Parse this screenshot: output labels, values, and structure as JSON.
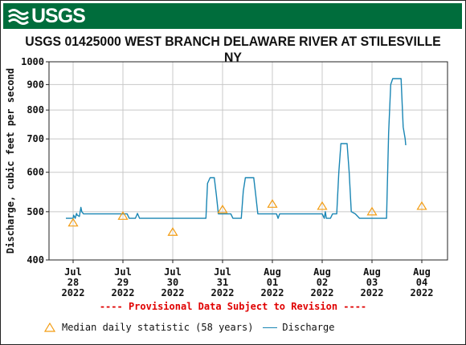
{
  "banner": {
    "logo_text": "USGS"
  },
  "chart_data": {
    "type": "line",
    "title": "USGS 01425000 WEST BRANCH DELAWARE RIVER AT STILESVILLE NY",
    "ylabel": "Discharge, cubic feet per second",
    "xlabel": "",
    "y_scale": "log",
    "ylim": [
      400,
      1000
    ],
    "y_ticks": [
      400,
      500,
      600,
      700,
      800,
      900,
      1000
    ],
    "x_ticks": [
      {
        "month": "Jul",
        "day": "28",
        "year": "2022"
      },
      {
        "month": "Jul",
        "day": "29",
        "year": "2022"
      },
      {
        "month": "Jul",
        "day": "30",
        "year": "2022"
      },
      {
        "month": "Jul",
        "day": "31",
        "year": "2022"
      },
      {
        "month": "Aug",
        "day": "01",
        "year": "2022"
      },
      {
        "month": "Aug",
        "day": "02",
        "year": "2022"
      },
      {
        "month": "Aug",
        "day": "03",
        "year": "2022"
      },
      {
        "month": "Aug",
        "day": "04",
        "year": "2022"
      }
    ],
    "grid": true,
    "series": [
      {
        "name": "Discharge",
        "color": "#1a86b4",
        "points": [
          [
            "2022-07-27 20:30",
            485
          ],
          [
            "2022-07-28 00:00",
            485
          ],
          [
            "2022-07-28 00:15",
            492
          ],
          [
            "2022-07-28 01:00",
            485
          ],
          [
            "2022-07-28 01:40",
            496
          ],
          [
            "2022-07-28 02:00",
            492
          ],
          [
            "2022-07-28 03:00",
            489
          ],
          [
            "2022-07-28 03:45",
            510
          ],
          [
            "2022-07-28 04:10",
            500
          ],
          [
            "2022-07-28 05:00",
            495
          ],
          [
            "2022-07-28 12:00",
            495
          ],
          [
            "2022-07-29 00:00",
            495
          ],
          [
            "2022-07-29 02:00",
            495
          ],
          [
            "2022-07-29 03:00",
            485
          ],
          [
            "2022-07-29 06:00",
            485
          ],
          [
            "2022-07-29 07:00",
            496
          ],
          [
            "2022-07-29 08:00",
            485
          ],
          [
            "2022-07-29 18:00",
            485
          ],
          [
            "2022-07-30 06:00",
            485
          ],
          [
            "2022-07-30 12:00",
            485
          ],
          [
            "2022-07-30 16:00",
            485
          ],
          [
            "2022-07-30 16:45",
            570
          ],
          [
            "2022-07-30 18:00",
            585
          ],
          [
            "2022-07-30 20:00",
            585
          ],
          [
            "2022-07-30 21:00",
            540
          ],
          [
            "2022-07-30 22:00",
            495
          ],
          [
            "2022-07-31 00:00",
            495
          ],
          [
            "2022-07-31 04:00",
            495
          ],
          [
            "2022-07-31 05:00",
            485
          ],
          [
            "2022-07-31 09:00",
            485
          ],
          [
            "2022-07-31 10:00",
            550
          ],
          [
            "2022-07-31 11:00",
            585
          ],
          [
            "2022-07-31 15:00",
            585
          ],
          [
            "2022-07-31 16:00",
            540
          ],
          [
            "2022-07-31 17:00",
            495
          ],
          [
            "2022-08-01 00:00",
            495
          ],
          [
            "2022-08-01 02:00",
            495
          ],
          [
            "2022-08-01 02:45",
            485
          ],
          [
            "2022-08-01 03:30",
            495
          ],
          [
            "2022-08-01 06:00",
            495
          ],
          [
            "2022-08-01 12:00",
            495
          ],
          [
            "2022-08-02 00:00",
            495
          ],
          [
            "2022-08-02 01:00",
            485
          ],
          [
            "2022-08-02 01:30",
            500
          ],
          [
            "2022-08-02 02:00",
            485
          ],
          [
            "2022-08-02 04:00",
            485
          ],
          [
            "2022-08-02 05:00",
            495
          ],
          [
            "2022-08-02 07:00",
            495
          ],
          [
            "2022-08-02 08:00",
            600
          ],
          [
            "2022-08-02 09:00",
            685
          ],
          [
            "2022-08-02 12:00",
            685
          ],
          [
            "2022-08-02 13:00",
            600
          ],
          [
            "2022-08-02 14:00",
            500
          ],
          [
            "2022-08-02 16:00",
            495
          ],
          [
            "2022-08-02 18:00",
            485
          ],
          [
            "2022-08-03 00:00",
            485
          ],
          [
            "2022-08-03 07:00",
            485
          ],
          [
            "2022-08-03 08:00",
            720
          ],
          [
            "2022-08-03 09:00",
            900
          ],
          [
            "2022-08-03 10:00",
            925
          ],
          [
            "2022-08-03 14:00",
            925
          ],
          [
            "2022-08-03 15:00",
            740
          ],
          [
            "2022-08-03 16:00",
            700
          ],
          [
            "2022-08-03 16:15",
            680
          ]
        ]
      }
    ],
    "median_points": {
      "name": "Median daily statistic (58 years)",
      "color": "#f39c12",
      "points": [
        [
          "2022-07-28 00:00",
          475
        ],
        [
          "2022-07-29 00:00",
          490
        ],
        [
          "2022-07-30 00:00",
          455
        ],
        [
          "2022-07-31 00:00",
          505
        ],
        [
          "2022-08-01 00:00",
          518
        ],
        [
          "2022-08-02 00:00",
          513
        ],
        [
          "2022-08-03 00:00",
          500
        ],
        [
          "2022-08-04 00:00",
          513
        ]
      ]
    }
  },
  "notes": {
    "revision": "---- Provisional Data Subject to Revision ----"
  },
  "legend": {
    "median_label": "Median daily statistic (58 years)",
    "discharge_label": "Discharge"
  }
}
